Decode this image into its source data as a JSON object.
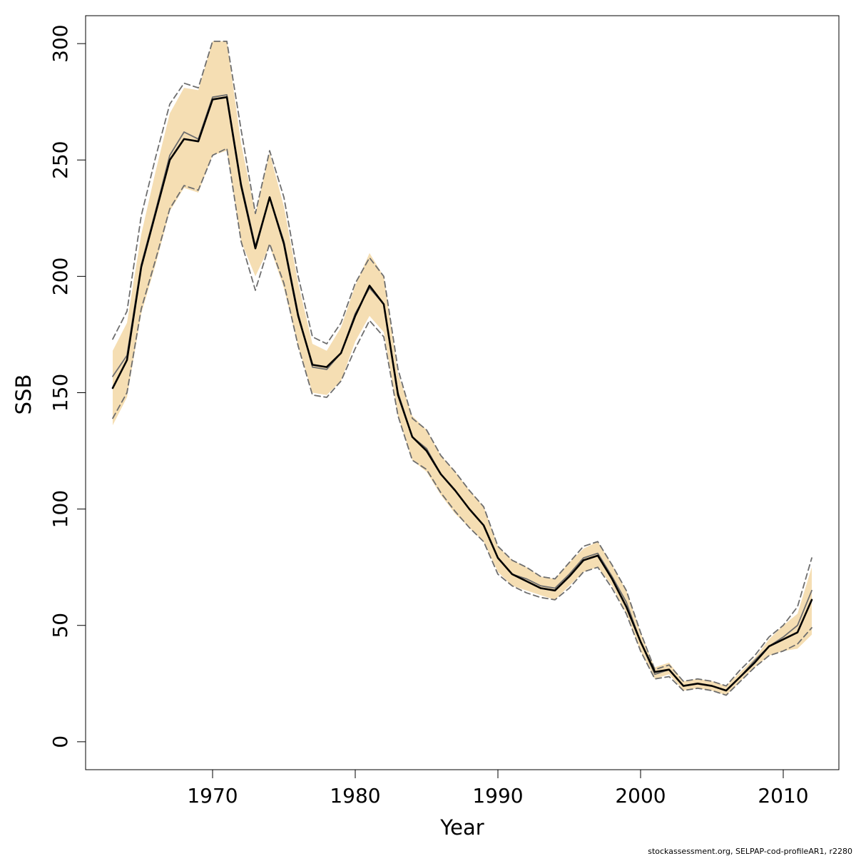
{
  "chart_data": {
    "type": "line",
    "title": "",
    "xlabel": "Year",
    "ylabel": "SSB",
    "xlim": [
      1961.1,
      2013.9
    ],
    "ylim": [
      -12,
      312
    ],
    "x_ticks": [
      1970,
      1980,
      1990,
      2000,
      2010
    ],
    "y_ticks": [
      0,
      50,
      100,
      150,
      200,
      250,
      300
    ],
    "grid": false,
    "legend": "none",
    "band_color": "#f5deb3",
    "x": [
      1963,
      1964,
      1965,
      1966,
      1967,
      1968,
      1969,
      1970,
      1971,
      1972,
      1973,
      1974,
      1975,
      1976,
      1977,
      1978,
      1979,
      1980,
      1981,
      1982,
      1983,
      1984,
      1985,
      1986,
      1987,
      1988,
      1989,
      1990,
      1991,
      1992,
      1993,
      1994,
      1995,
      1996,
      1997,
      1998,
      1999,
      2000,
      2001,
      2002,
      2003,
      2004,
      2005,
      2006,
      2007,
      2008,
      2009,
      2010,
      2011,
      2012
    ],
    "series": [
      {
        "style": "band",
        "color": "#f5deb3",
        "upper": [
          168,
          180,
          218,
          245,
          270,
          281,
          280,
          301,
          301,
          257,
          227,
          253,
          230,
          197,
          171,
          168,
          178,
          196,
          210,
          200,
          158,
          140,
          134,
          123,
          116,
          108,
          101,
          84,
          78,
          75,
          71,
          70,
          77,
          83,
          86,
          76,
          65,
          47,
          32,
          34,
          26,
          27,
          26,
          24,
          30,
          36,
          44,
          50,
          55,
          75
        ],
        "lower": [
          136,
          148,
          184,
          205,
          228,
          238,
          236,
          252,
          254,
          215,
          200,
          213,
          195,
          170,
          150,
          149,
          155,
          172,
          183,
          176,
          140,
          121,
          116,
          106,
          98,
          92,
          86,
          73,
          67,
          65,
          63,
          61,
          67,
          73,
          75,
          67,
          55,
          39,
          27,
          29,
          22,
          23,
          22,
          20,
          26,
          32,
          37,
          39,
          40,
          46
        ]
      },
      {
        "style": "dashed",
        "color": "#6e6e6e",
        "values": [
          173,
          185,
          226,
          251,
          274,
          283,
          281,
          301,
          301,
          263,
          227,
          254,
          234,
          200,
          174,
          171,
          180,
          197,
          208,
          200,
          160,
          139,
          134,
          123,
          116,
          108,
          101,
          84,
          78,
          75,
          71,
          70,
          77,
          84,
          86,
          76,
          65,
          47,
          31,
          33,
          26,
          27,
          26,
          24,
          31,
          37,
          45,
          50,
          58,
          79
        ]
      },
      {
        "style": "dashed",
        "color": "#6e6e6e",
        "values": [
          139,
          150,
          186,
          207,
          229,
          239,
          237,
          252,
          255,
          215,
          194,
          214,
          197,
          170,
          149,
          148,
          155,
          169,
          181,
          174,
          140,
          121,
          117,
          107,
          99,
          92,
          86,
          72,
          67,
          64,
          62,
          61,
          66,
          73,
          75,
          66,
          55,
          39,
          27,
          28,
          22,
          23,
          22,
          20,
          26,
          32,
          37,
          39,
          42,
          49
        ]
      },
      {
        "style": "solid",
        "color": "#6e6e6e",
        "values": [
          157,
          166,
          205,
          228,
          252,
          262,
          259,
          277,
          278,
          240,
          213,
          234,
          215,
          184,
          161,
          160,
          167,
          184,
          195,
          188,
          150,
          131,
          126,
          115,
          108,
          100,
          93,
          79,
          72,
          70,
          67,
          66,
          72,
          79,
          81,
          71,
          60,
          43,
          29,
          31,
          24,
          25,
          24,
          22,
          28,
          35,
          41,
          45,
          50,
          65
        ]
      },
      {
        "style": "solid",
        "color": "#000000",
        "values": [
          152,
          164,
          204,
          227,
          250,
          259,
          258,
          276,
          277,
          239,
          212,
          234,
          214,
          183,
          162,
          161,
          167,
          183,
          196,
          188,
          149,
          131,
          125,
          115,
          108,
          100,
          93,
          79,
          72,
          69,
          66,
          65,
          71,
          78,
          80,
          70,
          58,
          43,
          30,
          31,
          24,
          25,
          24,
          22,
          28,
          34,
          41,
          44,
          47,
          61
        ]
      }
    ]
  },
  "footer": "stockassessment.org, SELPAP-cod-profileAR1, r2280"
}
